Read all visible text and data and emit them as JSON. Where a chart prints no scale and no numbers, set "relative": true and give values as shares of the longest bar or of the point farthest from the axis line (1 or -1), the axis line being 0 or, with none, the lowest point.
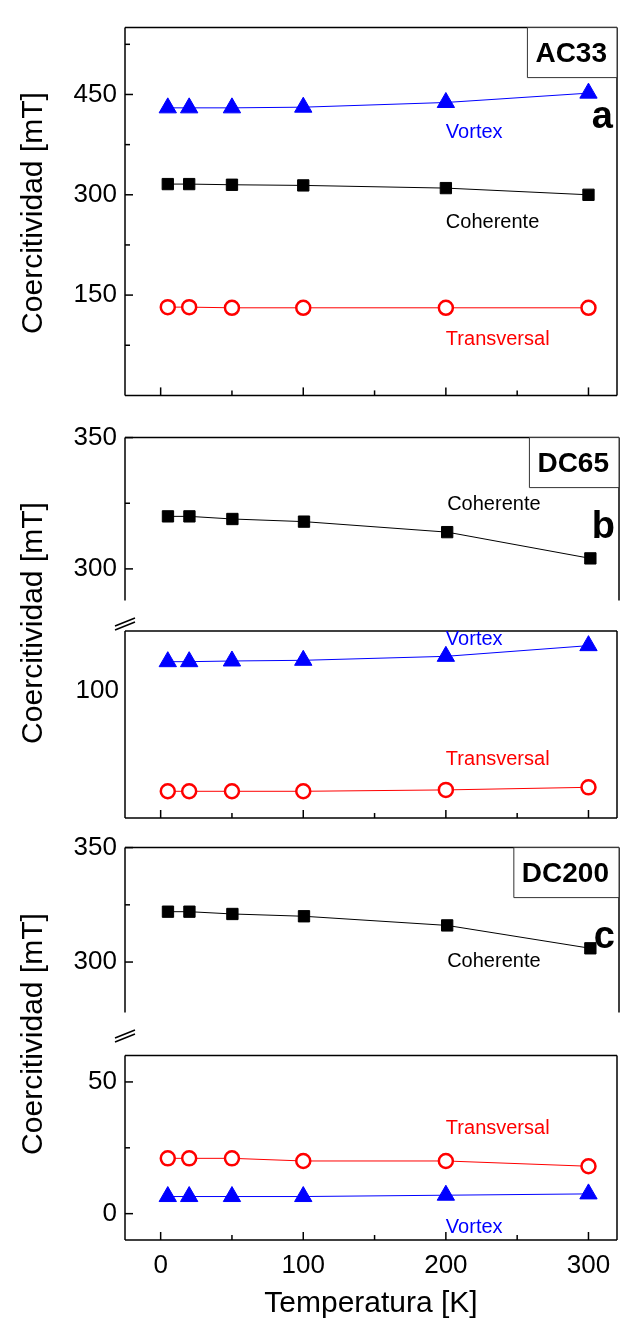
{
  "chart_data": [
    {
      "type": "line",
      "title": "AC33",
      "annotations": [
        "a"
      ],
      "ylabel": "Coercitividad [mT]",
      "x": [
        5,
        20,
        50,
        100,
        200,
        300
      ],
      "xlim": [
        -25,
        320
      ],
      "xticks": [
        0,
        {
          "value": 50,
          "label": null
        },
        100,
        {
          "value": 150,
          "label": null
        },
        200,
        {
          "value": 250,
          "label": null
        },
        300
      ],
      "ylim": [
        0,
        550
      ],
      "yticks": [
        {
          "value": 75,
          "label": null
        },
        150,
        {
          "value": 225,
          "label": null
        },
        300,
        {
          "value": 375,
          "label": null
        },
        450,
        {
          "value": 525,
          "label": null
        }
      ],
      "tick_labels": "y",
      "grid": false,
      "legend": false,
      "line_style": "solid",
      "series": [
        {
          "name": "Vortex",
          "color": "#0000ff",
          "marker": "triangle",
          "values": [
            430,
            430,
            430,
            431,
            438,
            452
          ]
        },
        {
          "name": "Coherente",
          "color": "#000000",
          "marker": "square",
          "values": [
            316,
            316,
            315,
            314,
            310,
            300
          ]
        },
        {
          "name": "Transversal",
          "color": "#ff0000",
          "marker": "circle",
          "values": [
            132,
            132,
            131,
            131,
            131,
            131
          ]
        }
      ]
    },
    {
      "type": "line",
      "title": "DC65",
      "annotations": [
        "b"
      ],
      "ylabel": "Coercitividad [mT]",
      "x": [
        5,
        20,
        50,
        100,
        200,
        300
      ],
      "xlim": [
        -25,
        320
      ],
      "ylim": [
        288,
        350
      ],
      "yticks": [
        300,
        {
          "value": 325,
          "label": null
        },
        350
      ],
      "tick_labels": "y",
      "grid": false,
      "legend": false,
      "line_style": "solid",
      "series": [
        {
          "name": "Coherente",
          "color": "#000000",
          "marker": "square",
          "values": [
            320,
            320,
            319,
            318,
            314,
            304
          ]
        }
      ]
    },
    {
      "type": "line",
      "relative": true,
      "annotations": [
        "100"
      ],
      "x": [
        5,
        20,
        50,
        100,
        200,
        300
      ],
      "xlim": [
        -25,
        320
      ],
      "xticks": [
        0,
        {
          "value": 50,
          "label": null
        },
        100,
        {
          "value": 150,
          "label": null
        },
        200,
        {
          "value": 250,
          "label": null
        },
        300
      ],
      "tick_labels": false,
      "grid": false,
      "legend": false,
      "line_style": "solid",
      "series": [
        {
          "name": "Vortex",
          "color": "#0000ff",
          "marker": "triangle",
          "values": [
            0.907,
            0.907,
            0.911,
            0.915,
            0.938,
            1
          ]
        },
        {
          "name": "Transversal",
          "color": "#ff0000",
          "marker": "circle",
          "values": [
            0.155,
            0.155,
            0.155,
            0.155,
            0.163,
            0.178
          ]
        }
      ]
    },
    {
      "type": "line",
      "title": "DC200",
      "annotations": [
        "c"
      ],
      "ylabel": "Coercitividad [mT]",
      "x": [
        5,
        20,
        50,
        100,
        200,
        300
      ],
      "xlim": [
        -25,
        320
      ],
      "ylim": [
        278,
        350
      ],
      "yticks": [
        300,
        {
          "value": 325,
          "label": null
        },
        350
      ],
      "tick_labels": "y",
      "grid": false,
      "legend": false,
      "line_style": "solid",
      "series": [
        {
          "name": "Coherente",
          "color": "#000000",
          "marker": "square",
          "values": [
            322,
            322,
            321,
            320,
            316,
            306
          ]
        }
      ]
    },
    {
      "type": "line",
      "xlabel": "Temperatura [K]",
      "x": [
        5,
        20,
        50,
        100,
        200,
        300
      ],
      "xlim": [
        -25,
        320
      ],
      "xticks": [
        0,
        {
          "value": 50,
          "label": null
        },
        100,
        {
          "value": 150,
          "label": null
        },
        200,
        {
          "value": 250,
          "label": null
        },
        300
      ],
      "ylim": [
        -10,
        60
      ],
      "yticks": [
        0,
        {
          "value": 25,
          "label": null
        },
        50
      ],
      "grid": false,
      "legend": false,
      "line_style": "solid",
      "series": [
        {
          "name": "Transversal",
          "color": "#ff0000",
          "marker": "circle",
          "values": [
            21,
            21,
            21,
            20,
            20,
            18
          ]
        },
        {
          "name": "Vortex",
          "color": "#0000ff",
          "marker": "triangle",
          "values": [
            6.5,
            6.5,
            6.5,
            6.5,
            7,
            7.5
          ]
        }
      ]
    }
  ]
}
